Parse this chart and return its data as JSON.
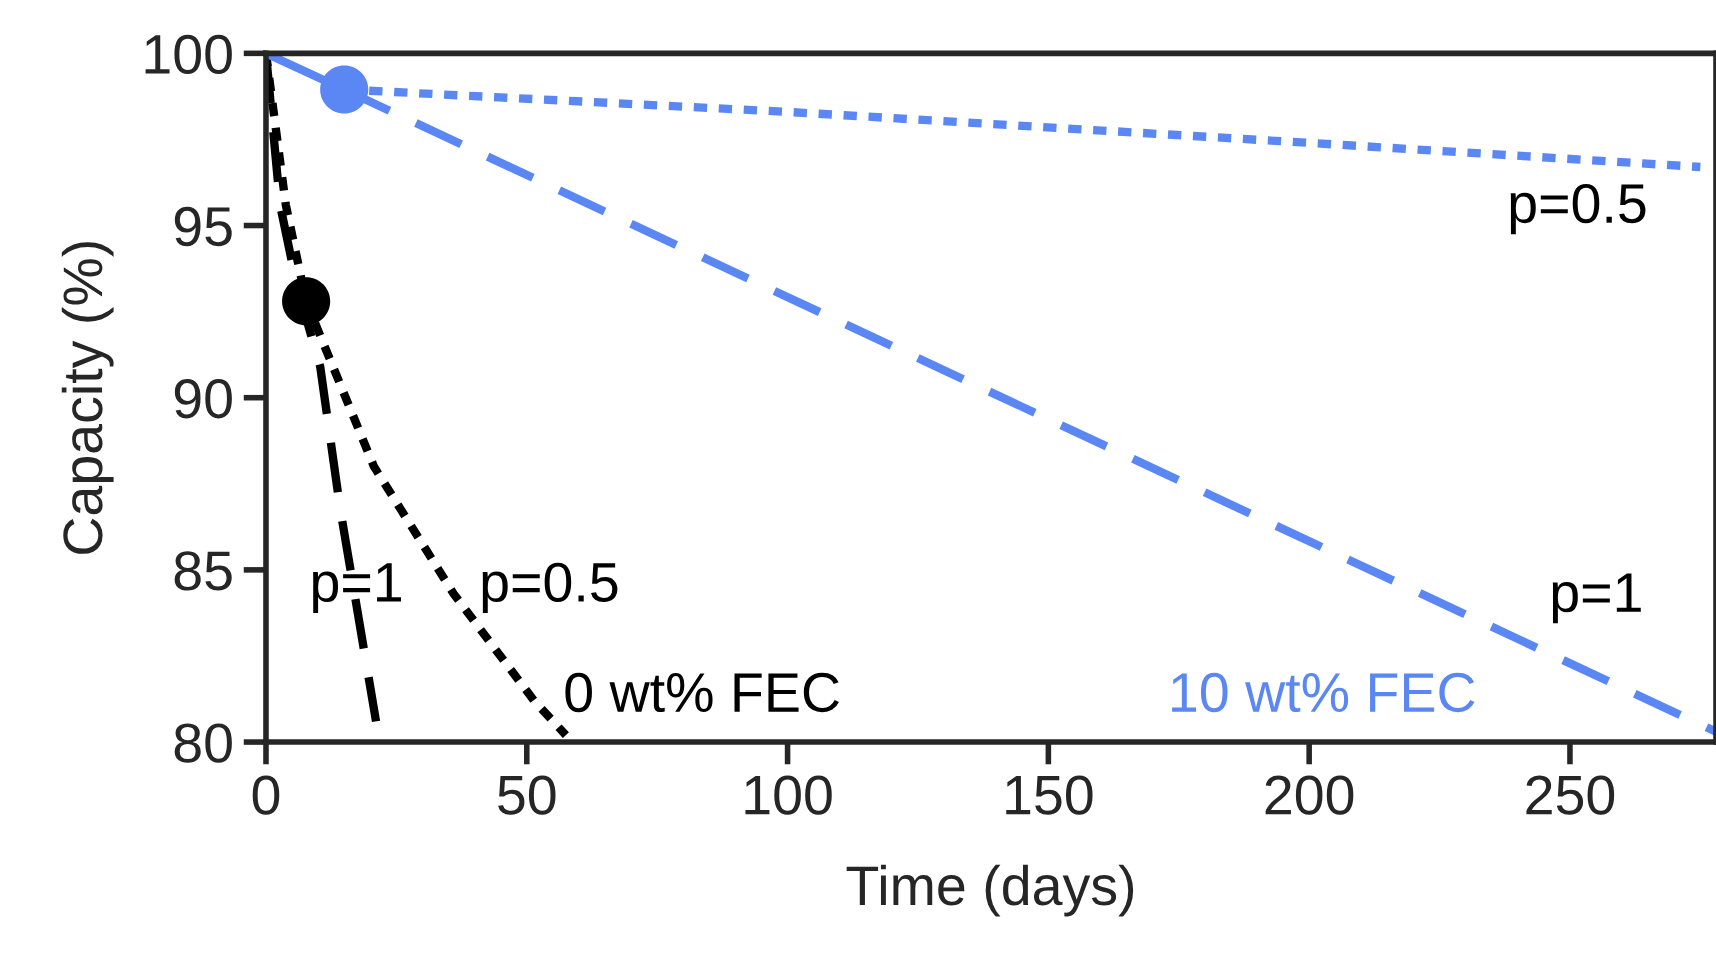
{
  "chart_data": {
    "type": "line",
    "xlabel": "Time (days)",
    "ylabel": "Capacity (%)",
    "xlim": [
      0,
      278
    ],
    "ylim": [
      80,
      100
    ],
    "xticks": [
      0,
      50,
      100,
      150,
      200,
      250
    ],
    "yticks": [
      80,
      85,
      90,
      95,
      100
    ],
    "grid": false,
    "legend": false,
    "series": [
      {
        "name": "p=1",
        "color": "#000000",
        "line_style": "dashed",
        "marker": "none",
        "x": [
          0,
          2.7,
          6,
          10.4,
          14.2,
          21.1
        ],
        "values": [
          100,
          95.6,
          93.2,
          90.9,
          86.8,
          80.6
        ]
      },
      {
        "name": "p=0.5",
        "color": "#000000",
        "line_style": "dotted",
        "marker": "none",
        "x": [
          0,
          3.8,
          7.7,
          20.7,
          36,
          51.4,
          57.5
        ],
        "values": [
          100,
          95.6,
          92.8,
          88.0,
          84.3,
          81.2,
          80.2
        ]
      },
      {
        "color": "#5b87f5",
        "line_style": "solid",
        "marker": "none",
        "x": [
          0,
          15
        ],
        "values": [
          100,
          98.95
        ]
      },
      {
        "name": "p=1",
        "color": "#5b87f5",
        "line_style": "dashed",
        "marker": "none",
        "x": [
          15,
          278
        ],
        "values": [
          98.95,
          80.3
        ]
      },
      {
        "name": "p=0.5",
        "color": "#5b87f5",
        "line_style": "dotted",
        "marker": "none",
        "x": [
          15,
          100,
          200,
          275
        ],
        "values": [
          98.95,
          98.3,
          97.4,
          96.7
        ]
      },
      {
        "type": "scatter",
        "color": "#000000",
        "marker": "circle",
        "x": [
          7.7
        ],
        "values": [
          92.8
        ]
      },
      {
        "type": "scatter",
        "color": "#5b87f5",
        "marker": "circle",
        "x": [
          15
        ],
        "values": [
          98.95
        ]
      }
    ],
    "annotations": [
      "0 wt% FEC",
      "10 wt% FEC"
    ]
  }
}
